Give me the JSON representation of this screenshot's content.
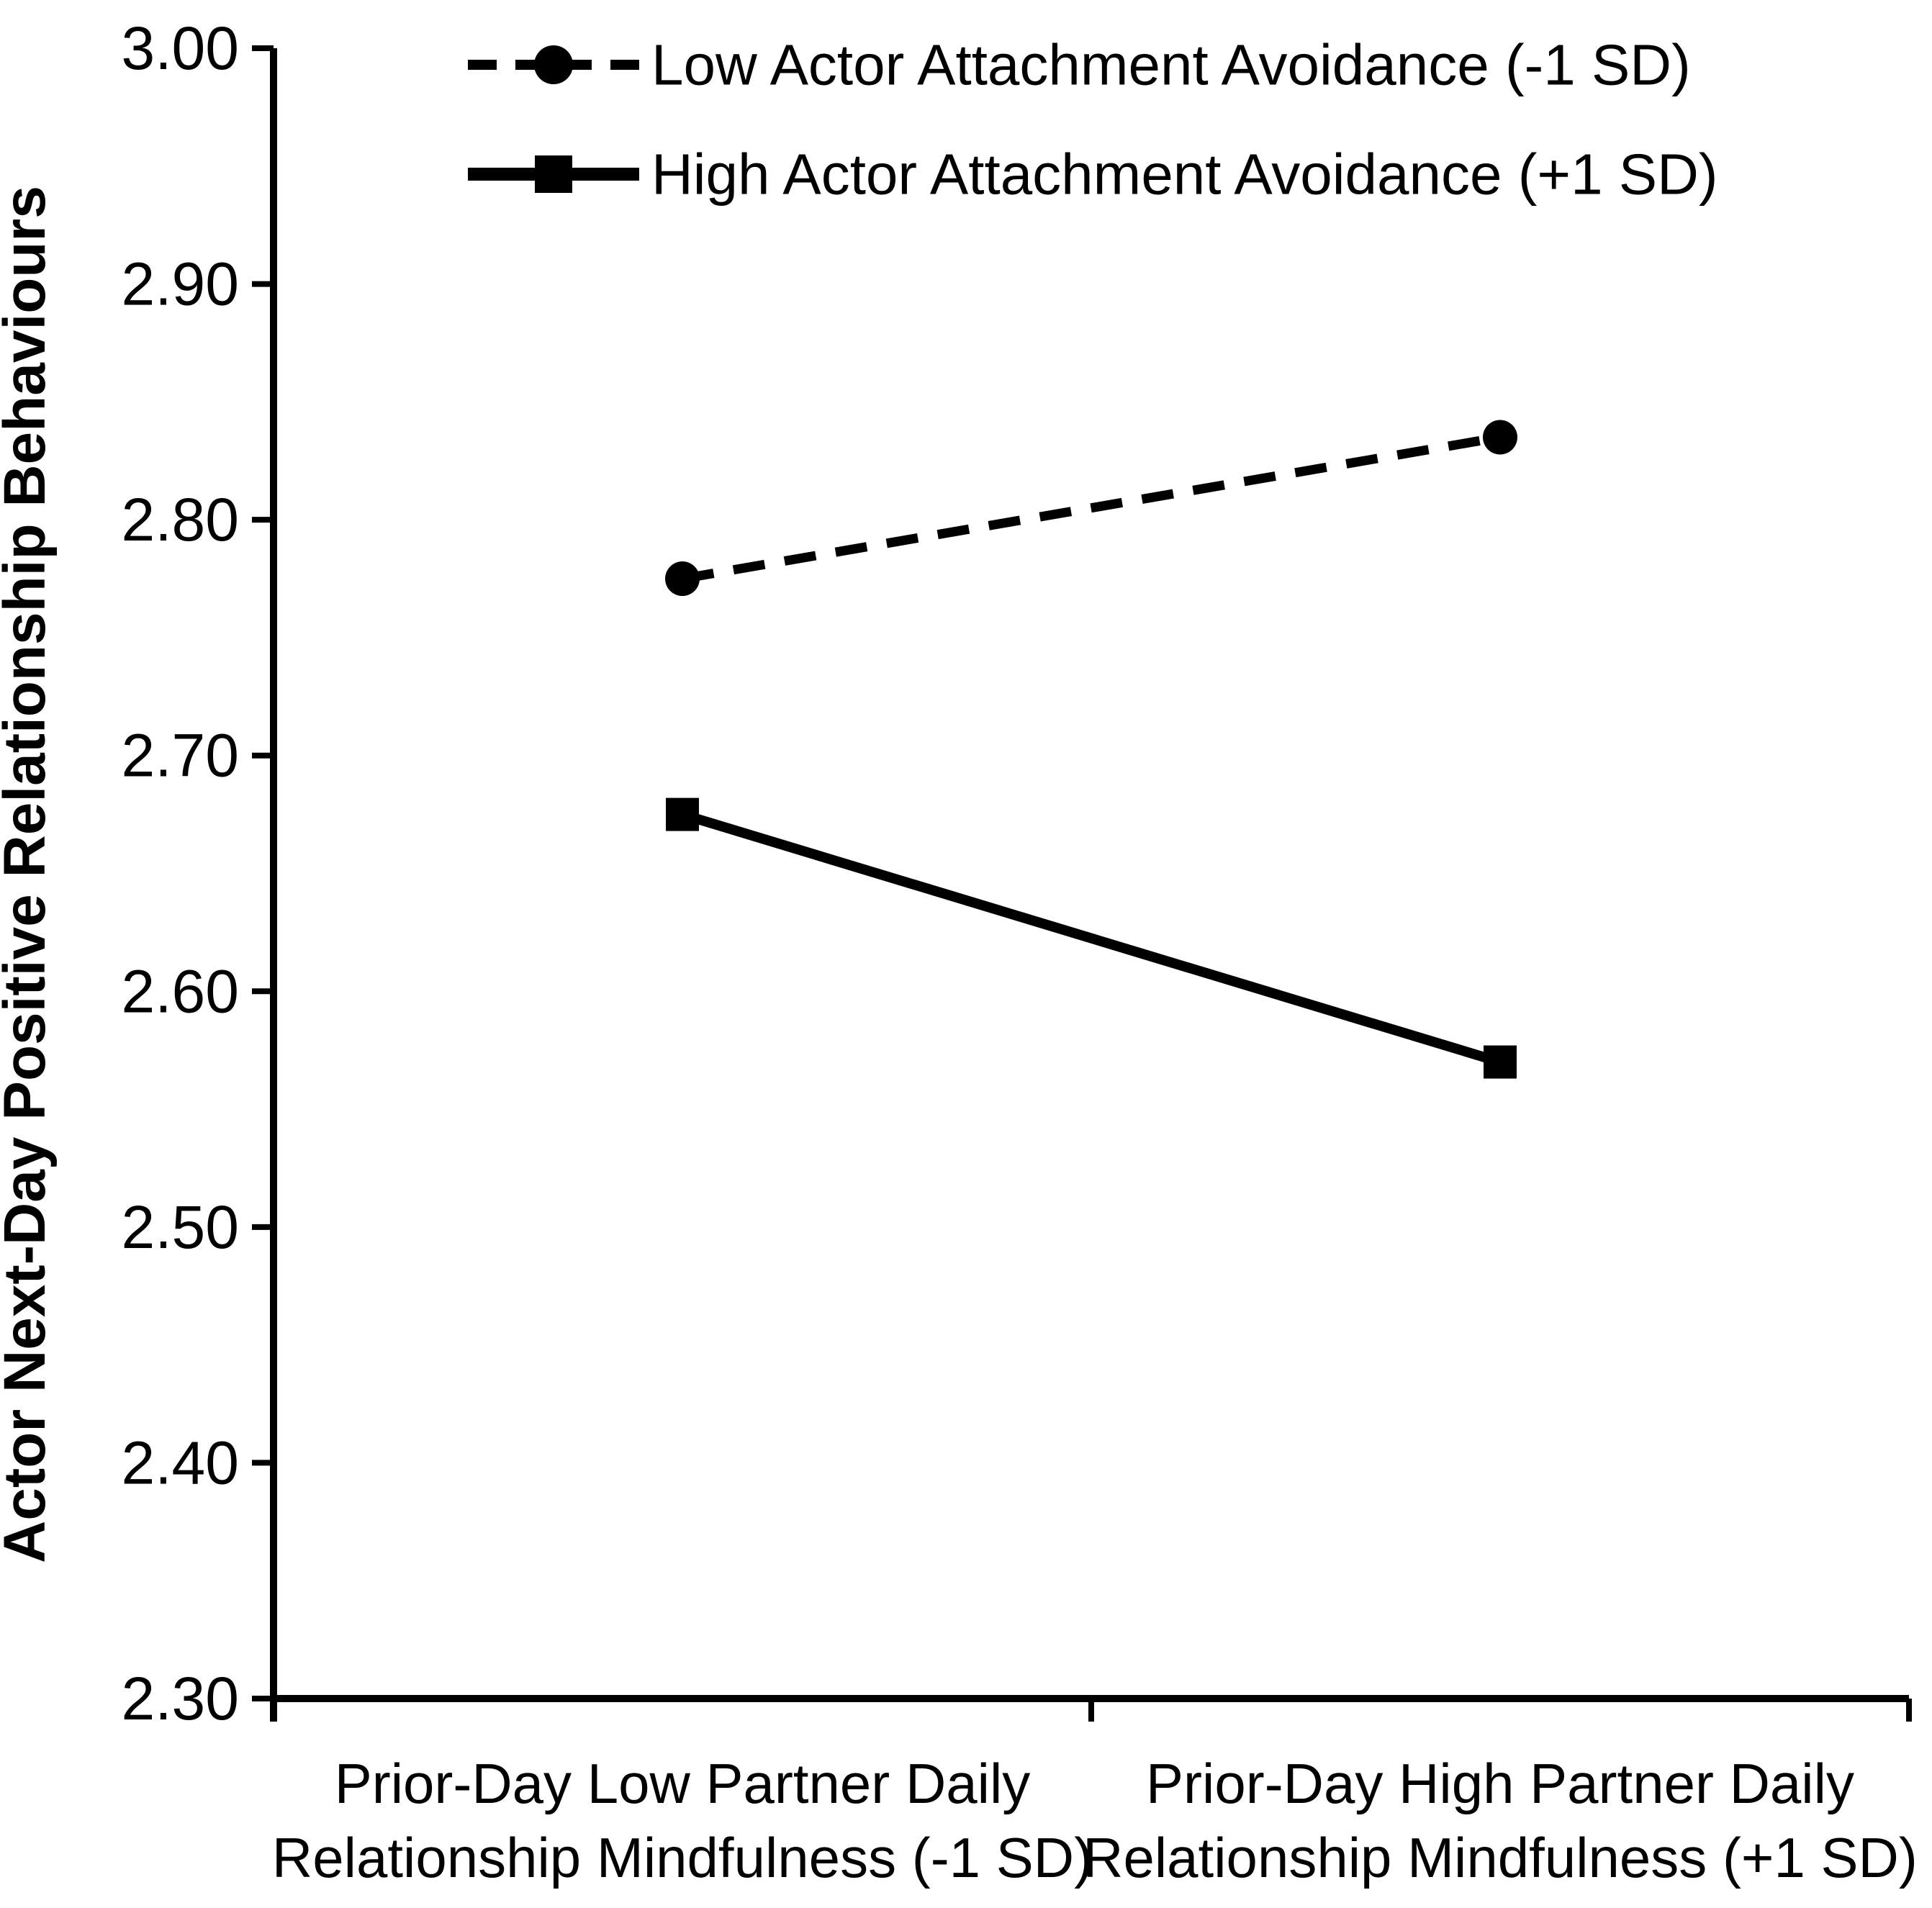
{
  "chart_data": {
    "type": "line",
    "title": "",
    "xlabel": "",
    "ylabel": "Actor Next-Day Positive Relationship Behaviours",
    "ylim": [
      2.3,
      3.0
    ],
    "ytick_step": 0.1,
    "yticks": [
      "3.00",
      "2.90",
      "2.80",
      "2.70",
      "2.60",
      "2.50",
      "2.40",
      "2.30"
    ],
    "grid": false,
    "legend_position": "top",
    "background_color": "#ffffff",
    "foreground_color": "#000000",
    "categories": [
      {
        "label": "Prior-Day Low Partner Daily Relationship Mindfulness (-1 SD)",
        "lines": [
          "Prior-Day Low Partner Daily",
          "Relationship Mindfulness (-1 SD)"
        ]
      },
      {
        "label": "Prior-Day High Partner Daily Relationship Mindfulness (+1 SD)",
        "lines": [
          "Prior-Day High Partner Daily",
          "Relationship Mindfulness (+1 SD)"
        ]
      }
    ],
    "series": [
      {
        "name": "Low Actor Attachment Avoidance (-1 SD)",
        "marker": "circle",
        "line_style": "dashed",
        "values": [
          2.775,
          2.835
        ]
      },
      {
        "name": "High Actor Attachment Avoidance (+1 SD)",
        "marker": "square",
        "line_style": "solid",
        "values": [
          2.675,
          2.57
        ]
      }
    ]
  }
}
